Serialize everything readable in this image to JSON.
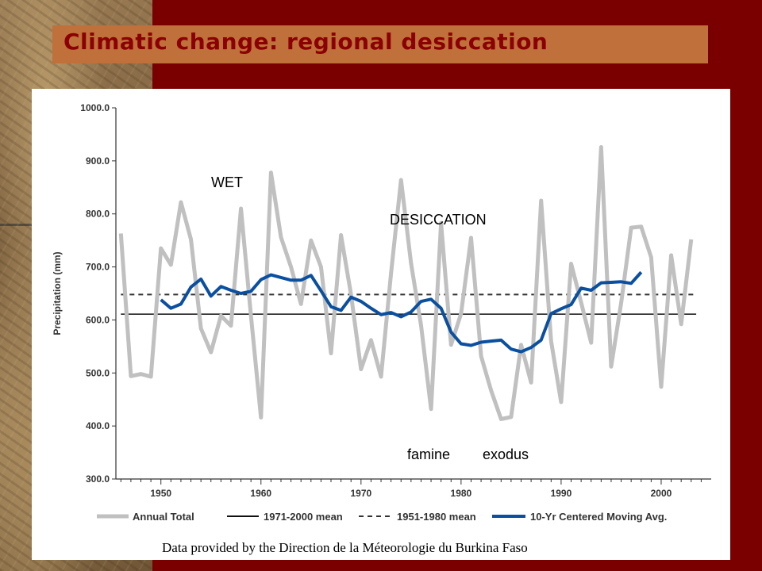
{
  "slide": {
    "title": "Climatic change: regional desiccation",
    "source": "Data provided by the Direction de la Méteorologie du Burkina Faso"
  },
  "colors": {
    "background": "#7a0000",
    "title_bar": "#c0703a",
    "title_text": "#8b0000",
    "annual": "#c0c0c0",
    "moving_avg": "#0a4fa0"
  },
  "annotations": {
    "wet": "WET",
    "desiccation": "DESICCATION",
    "famine": "famine",
    "exodus": "exodus"
  },
  "chart_data": {
    "type": "line",
    "title": "",
    "xlabel": "",
    "ylabel": "Precipitation (mm)",
    "xlim": [
      1945.5,
      2005
    ],
    "ylim": [
      300,
      1000
    ],
    "yticks": [
      "300.0",
      "400.0",
      "500.0",
      "600.0",
      "700.0",
      "800.0",
      "900.0",
      "1000.0"
    ],
    "xticks": [
      "1950",
      "1960",
      "1970",
      "1980",
      "1990",
      "2000"
    ],
    "series": [
      {
        "name": "Annual Total",
        "x": [
          1946,
          1947,
          1948,
          1949,
          1950,
          1951,
          1952,
          1953,
          1954,
          1955,
          1956,
          1957,
          1958,
          1959,
          1960,
          1961,
          1962,
          1963,
          1964,
          1965,
          1966,
          1967,
          1968,
          1969,
          1970,
          1971,
          1972,
          1973,
          1974,
          1975,
          1976,
          1977,
          1978,
          1979,
          1980,
          1981,
          1982,
          1983,
          1984,
          1985,
          1986,
          1987,
          1988,
          1989,
          1990,
          1991,
          1992,
          1993,
          1994,
          1995,
          1996,
          1997,
          1998,
          1999,
          2000,
          2001,
          2002,
          2003
        ],
        "values": [
          763,
          494,
          498,
          493,
          735,
          704,
          822,
          752,
          584,
          539,
          608,
          589,
          810,
          608,
          416,
          878,
          756,
          700,
          630,
          750,
          700,
          537,
          760,
          648,
          507,
          562,
          493,
          688,
          864,
          707,
          590,
          432,
          783,
          553,
          612,
          755,
          532,
          467,
          413,
          417,
          553,
          482,
          825,
          560,
          445,
          706,
          633,
          557,
          926,
          512,
          632,
          774,
          776,
          718,
          474,
          722,
          592,
          752
        ]
      },
      {
        "name": "1971-2000 mean",
        "values": [
          611
        ]
      },
      {
        "name": "1951-1980 mean",
        "values": [
          648
        ]
      },
      {
        "name": "10-Yr Centered Moving Avg.",
        "x": [
          1950,
          1951,
          1952,
          1953,
          1954,
          1955,
          1956,
          1957,
          1958,
          1959,
          1960,
          1961,
          1962,
          1963,
          1964,
          1965,
          1966,
          1967,
          1968,
          1969,
          1970,
          1971,
          1972,
          1973,
          1974,
          1975,
          1976,
          1977,
          1978,
          1979,
          1980,
          1981,
          1982,
          1983,
          1984,
          1985,
          1986,
          1987,
          1988,
          1989,
          1990,
          1991,
          1992,
          1993,
          1994,
          1995,
          1996,
          1997,
          1998
        ],
        "values": [
          638,
          622,
          630,
          662,
          677,
          645,
          663,
          656,
          650,
          654,
          676,
          685,
          680,
          675,
          675,
          684,
          655,
          625,
          618,
          643,
          635,
          622,
          610,
          614,
          606,
          615,
          635,
          639,
          622,
          577,
          555,
          552,
          558,
          560,
          562,
          545,
          540,
          548,
          562,
          612,
          621,
          629,
          660,
          656,
          670,
          671,
          672,
          669,
          690
        ]
      }
    ],
    "legend": "bottom"
  }
}
